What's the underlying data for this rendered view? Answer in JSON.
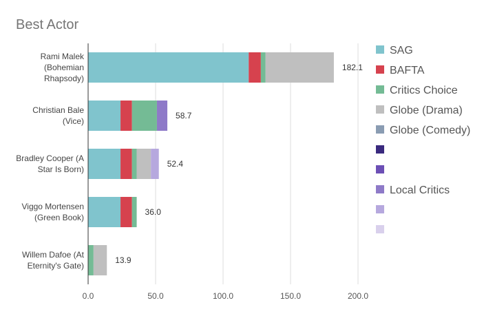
{
  "chart_data": {
    "type": "bar",
    "orientation": "horizontal",
    "stacked": true,
    "title": "Best Actor",
    "xlim": [
      0,
      200
    ],
    "xticks": [
      "0.0",
      "50.0",
      "100.0",
      "150.0",
      "200.0"
    ],
    "grid": "vertical",
    "legend_position": "right",
    "categories": [
      [
        "Rami Malek",
        "(Bohemian",
        "Rhapsody)"
      ],
      [
        "Christian Bale",
        "(Vice)"
      ],
      [
        "Bradley Cooper (A",
        "Star Is Born)"
      ],
      [
        "Viggo Mortensen",
        "(Green Book)"
      ],
      [
        "Willem Dafoe (At",
        "Eternity's Gate)"
      ]
    ],
    "totals": [
      "182.1",
      "58.7",
      "52.4",
      "36.0",
      "13.9"
    ],
    "series": [
      {
        "name": "SAG",
        "color": "#80c4cd",
        "values": [
          119,
          24,
          24,
          24,
          0
        ]
      },
      {
        "name": "BAFTA",
        "color": "#d6424e",
        "values": [
          9,
          8.5,
          8.5,
          8.5,
          0
        ]
      },
      {
        "name": "Critics Choice",
        "color": "#74bb95",
        "values": [
          3.5,
          18.5,
          3.5,
          3.5,
          4
        ]
      },
      {
        "name": "Globe (Drama)",
        "color": "#bfbfbf",
        "values": [
          50.6,
          0,
          10.5,
          0,
          9.9
        ]
      },
      {
        "name": "Globe (Comedy)",
        "color": "#8a9cb2",
        "values": [
          0,
          0,
          0,
          0,
          0
        ]
      },
      {
        "name": "",
        "color": "#3a2a7e",
        "values": [
          0,
          0,
          0,
          0,
          0
        ]
      },
      {
        "name": "",
        "color": "#6c4fb5",
        "values": [
          0,
          0,
          0,
          0,
          0
        ]
      },
      {
        "name": "Local Critics",
        "color": "#8e7ac8",
        "values": [
          0,
          7.7,
          0,
          0,
          0
        ]
      },
      {
        "name": "",
        "color": "#b6a8de",
        "values": [
          0,
          0,
          5.9,
          0,
          0
        ]
      },
      {
        "name": "",
        "color": "#d9d0ec",
        "values": [
          0,
          0,
          0,
          0,
          0
        ]
      }
    ]
  }
}
